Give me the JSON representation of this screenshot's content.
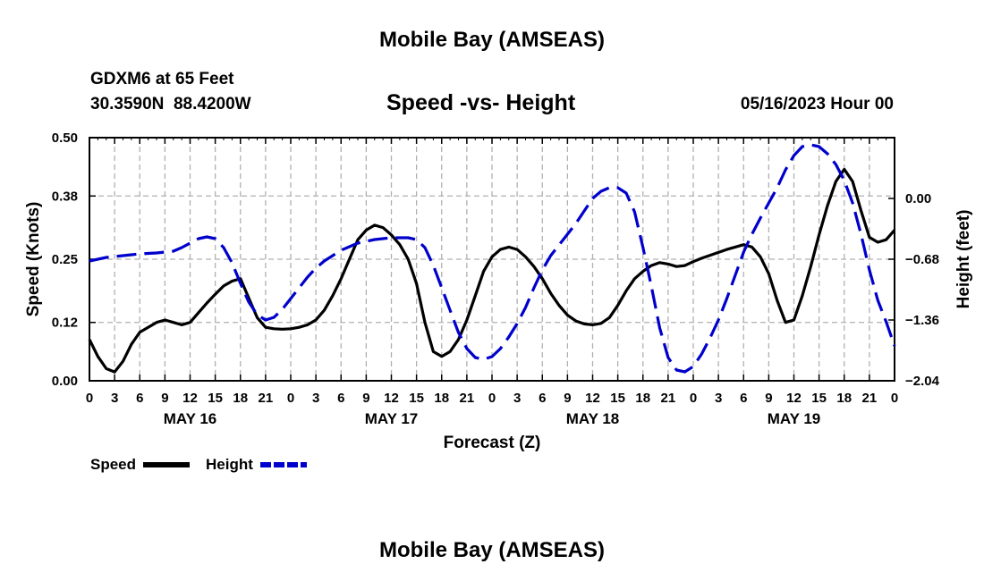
{
  "page": {
    "title_top": "Mobile Bay (AMSEAS)",
    "station": "GDXM6 at 65 Feet",
    "coords": "30.3590N  88.4200W",
    "subtitle": "Speed -vs- Height",
    "datetime": "05/16/2023 Hour 00",
    "title_bottom": "Mobile Bay (AMSEAS)"
  },
  "legend": {
    "speed_label": "Speed",
    "height_label": "Height",
    "speed_color": "#000000",
    "height_color": "#0000cc"
  },
  "chart_data": {
    "type": "line",
    "title": "Speed -vs- Height",
    "xlabel": "Forecast (Z)",
    "ylabel": "Speed (Knots)",
    "y2label": "Height (feet)",
    "xlim": [
      0,
      96
    ],
    "ylim": [
      0,
      0.5
    ],
    "y2lim": [
      -2.04,
      0.68
    ],
    "grid": true,
    "x_ticks": [
      0,
      3,
      6,
      9,
      12,
      15,
      18,
      21,
      24,
      27,
      30,
      33,
      36,
      39,
      42,
      45,
      48,
      51,
      54,
      57,
      60,
      63,
      66,
      69,
      72,
      75,
      78,
      81,
      84,
      87,
      90,
      93,
      96
    ],
    "x_tick_labels": [
      "0",
      "3",
      "6",
      "9",
      "12",
      "15",
      "18",
      "21",
      "0",
      "3",
      "6",
      "9",
      "12",
      "15",
      "18",
      "21",
      "0",
      "3",
      "6",
      "9",
      "12",
      "15",
      "18",
      "21",
      "0",
      "3",
      "6",
      "9",
      "12",
      "15",
      "18",
      "21",
      "0"
    ],
    "day_labels": [
      {
        "x": 12,
        "label": "MAY 16"
      },
      {
        "x": 36,
        "label": "MAY 17"
      },
      {
        "x": 60,
        "label": "MAY 18"
      },
      {
        "x": 84,
        "label": "MAY 19"
      }
    ],
    "y_ticks": [
      0.0,
      0.12,
      0.25,
      0.38,
      0.5
    ],
    "y_tick_labels": [
      "0.00",
      "0.12",
      "0.25",
      "0.38",
      "0.50"
    ],
    "y2_ticks": [
      -2.04,
      -1.36,
      -0.68,
      0.0
    ],
    "y2_tick_labels": [
      "−2.04",
      "−1.36",
      "−0.68",
      "0.00"
    ],
    "series": [
      {
        "name": "Speed",
        "axis": "left",
        "style": "solid",
        "x": [
          0,
          1,
          2,
          3,
          4,
          5,
          6,
          7,
          8,
          9,
          10,
          11,
          12,
          13,
          14,
          15,
          16,
          17,
          18,
          19,
          20,
          21,
          22,
          23,
          24,
          25,
          26,
          27,
          28,
          29,
          30,
          31,
          32,
          33,
          34,
          35,
          36,
          37,
          38,
          39,
          40,
          41,
          42,
          43,
          44,
          45,
          46,
          47,
          48,
          49,
          50,
          51,
          52,
          53,
          54,
          55,
          56,
          57,
          58,
          59,
          60,
          61,
          62,
          63,
          64,
          65,
          66,
          67,
          68,
          69,
          70,
          71,
          72,
          73,
          74,
          75,
          76,
          77,
          78,
          79,
          80,
          81,
          82,
          83,
          84,
          85,
          86,
          87,
          88,
          89,
          90,
          91,
          92,
          93,
          94,
          95,
          96
        ],
        "values": [
          0.085,
          0.05,
          0.025,
          0.018,
          0.04,
          0.075,
          0.1,
          0.11,
          0.12,
          0.125,
          0.12,
          0.115,
          0.12,
          0.14,
          0.16,
          0.178,
          0.195,
          0.205,
          0.21,
          0.17,
          0.13,
          0.11,
          0.107,
          0.106,
          0.107,
          0.11,
          0.115,
          0.125,
          0.145,
          0.175,
          0.21,
          0.25,
          0.29,
          0.31,
          0.32,
          0.315,
          0.3,
          0.28,
          0.25,
          0.2,
          0.12,
          0.06,
          0.05,
          0.06,
          0.085,
          0.125,
          0.175,
          0.225,
          0.255,
          0.27,
          0.275,
          0.27,
          0.255,
          0.235,
          0.21,
          0.18,
          0.155,
          0.135,
          0.123,
          0.117,
          0.115,
          0.118,
          0.13,
          0.155,
          0.185,
          0.21,
          0.225,
          0.237,
          0.243,
          0.24,
          0.235,
          0.237,
          0.245,
          0.252,
          0.258,
          0.264,
          0.27,
          0.275,
          0.28,
          0.275,
          0.255,
          0.22,
          0.165,
          0.12,
          0.125,
          0.175,
          0.235,
          0.3,
          0.36,
          0.41,
          0.435,
          0.41,
          0.35,
          0.295,
          0.285,
          0.29,
          0.31
        ]
      },
      {
        "name": "Height",
        "axis": "right",
        "style": "dashed",
        "x": [
          0,
          1,
          2,
          3,
          4,
          5,
          6,
          7,
          8,
          9,
          10,
          11,
          12,
          13,
          14,
          15,
          16,
          17,
          18,
          19,
          20,
          21,
          22,
          23,
          24,
          25,
          26,
          27,
          28,
          29,
          30,
          31,
          32,
          33,
          34,
          35,
          36,
          37,
          38,
          39,
          40,
          41,
          42,
          43,
          44,
          45,
          46,
          47,
          48,
          49,
          50,
          51,
          52,
          53,
          54,
          55,
          56,
          57,
          58,
          59,
          60,
          61,
          62,
          63,
          64,
          65,
          66,
          67,
          68,
          69,
          70,
          71,
          72,
          73,
          74,
          75,
          76,
          77,
          78,
          79,
          80,
          81,
          82,
          83,
          84,
          85,
          86,
          87,
          88,
          89,
          90,
          91,
          92,
          93,
          94,
          95,
          96
        ],
        "values": [
          -0.7,
          -0.68,
          -0.66,
          -0.65,
          -0.64,
          -0.63,
          -0.62,
          -0.615,
          -0.61,
          -0.6,
          -0.59,
          -0.55,
          -0.5,
          -0.45,
          -0.43,
          -0.45,
          -0.55,
          -0.72,
          -0.95,
          -1.16,
          -1.3,
          -1.36,
          -1.33,
          -1.24,
          -1.12,
          -1.0,
          -0.88,
          -0.78,
          -0.7,
          -0.64,
          -0.58,
          -0.54,
          -0.5,
          -0.48,
          -0.46,
          -0.45,
          -0.44,
          -0.44,
          -0.44,
          -0.46,
          -0.55,
          -0.75,
          -1.0,
          -1.25,
          -1.5,
          -1.68,
          -1.78,
          -1.8,
          -1.77,
          -1.68,
          -1.55,
          -1.4,
          -1.22,
          -1.0,
          -0.8,
          -0.64,
          -0.52,
          -0.4,
          -0.28,
          -0.14,
          0.0,
          0.08,
          0.12,
          0.12,
          0.06,
          -0.15,
          -0.55,
          -0.98,
          -1.45,
          -1.78,
          -1.92,
          -1.94,
          -1.88,
          -1.74,
          -1.56,
          -1.36,
          -1.12,
          -0.86,
          -0.6,
          -0.4,
          -0.22,
          -0.05,
          0.12,
          0.32,
          0.48,
          0.58,
          0.6,
          0.58,
          0.5,
          0.38,
          0.2,
          -0.05,
          -0.4,
          -0.8,
          -1.14,
          -1.38,
          -1.65
        ]
      }
    ]
  }
}
